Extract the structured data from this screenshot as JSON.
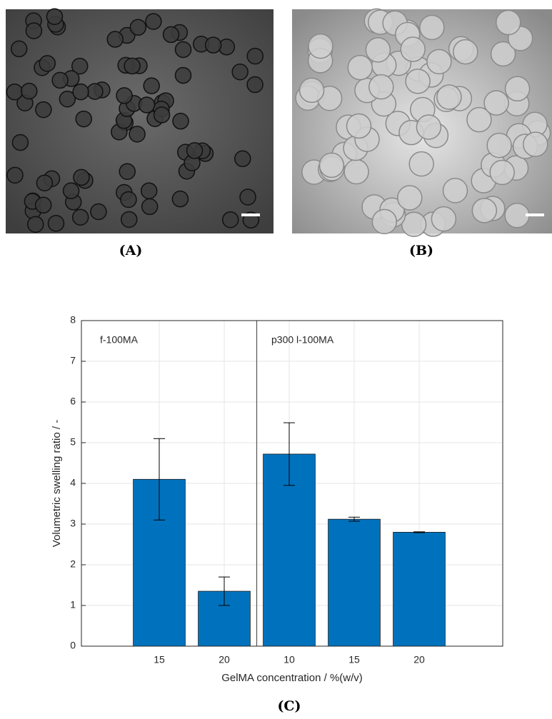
{
  "captions": {
    "a": "(A)",
    "b": "(B)",
    "c": "(C)"
  },
  "chart_data": {
    "type": "bar",
    "categories": [
      "15",
      "20",
      "10",
      "15",
      "20"
    ],
    "values": [
      4.1,
      1.35,
      4.72,
      3.12,
      2.8
    ],
    "errors": [
      1.0,
      0.35,
      0.77,
      0.05,
      0.01
    ],
    "color": "#0072bd",
    "ylim": [
      0,
      8
    ],
    "yticks": [
      0,
      1,
      2,
      3,
      4,
      5,
      6,
      7,
      8
    ],
    "grid": true,
    "xlabel": "GelMA concentration / %(w/v)",
    "ylabel": "Volumetric swelling ratio / -",
    "annotations": [
      "f-100MA",
      "p300 l-100MA"
    ]
  }
}
